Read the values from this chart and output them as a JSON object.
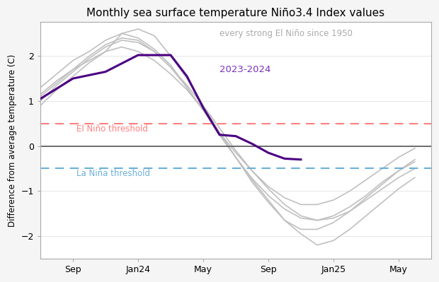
{
  "title": "Monthly sea surface temperature Niño3.4 Index values",
  "ylabel": "Difference from average temperature (C)",
  "el_nino_threshold": 0.5,
  "la_nina_threshold": -0.5,
  "el_nino_label": "El Niño threshold",
  "la_nina_label": "La Niña threshold",
  "enso_label": "2023-2024",
  "gray_label": "every strong El Niño since 1950",
  "ylim": [
    -2.5,
    2.75
  ],
  "background_color": "#f5f5f5",
  "plot_bg_color": "#ffffff",
  "main_color": "#4b0082",
  "gray_color": "#c0c0c0",
  "el_nino_color": "#ff8080",
  "la_nina_color": "#6ab0d8",
  "xtick_labels": [
    "Sep",
    "Jan24",
    "May",
    "Sep",
    "Jan25",
    "May"
  ],
  "xtick_positions": [
    2,
    6,
    10,
    14,
    18,
    22
  ],
  "xlim": [
    0,
    24
  ],
  "main_line_x": [
    0,
    2,
    4,
    6,
    8,
    9,
    10,
    11,
    12,
    13,
    14,
    15,
    16
  ],
  "main_line_y": [
    1.05,
    1.5,
    1.65,
    2.02,
    2.02,
    1.55,
    0.85,
    0.25,
    0.22,
    0.05,
    -0.15,
    -0.28,
    -0.3
  ],
  "gray_lines": [
    {
      "x": [
        0,
        1,
        2,
        3,
        4,
        5,
        6,
        7,
        8,
        9,
        10,
        11,
        12,
        13,
        14,
        15,
        16,
        17,
        18,
        19,
        20,
        21,
        22,
        23
      ],
      "y": [
        1.3,
        1.6,
        1.9,
        2.1,
        2.35,
        2.5,
        2.4,
        2.15,
        1.8,
        1.3,
        0.8,
        0.25,
        -0.25,
        -0.75,
        -1.2,
        -1.65,
        -1.95,
        -2.2,
        -2.1,
        -1.85,
        -1.55,
        -1.25,
        -0.95,
        -0.7
      ]
    },
    {
      "x": [
        0,
        1,
        2,
        3,
        4,
        5,
        6,
        7,
        8,
        9,
        10,
        11,
        12,
        13,
        14,
        15,
        16,
        17,
        18,
        19,
        20,
        21,
        22,
        23
      ],
      "y": [
        0.9,
        1.25,
        1.55,
        1.85,
        2.1,
        2.5,
        2.6,
        2.45,
        2.0,
        1.5,
        0.9,
        0.3,
        -0.25,
        -0.8,
        -1.25,
        -1.65,
        -1.85,
        -1.85,
        -1.7,
        -1.45,
        -1.15,
        -0.85,
        -0.55,
        -0.3
      ]
    },
    {
      "x": [
        0,
        1,
        2,
        3,
        4,
        5,
        6,
        7,
        8,
        9,
        10,
        11,
        12,
        13,
        14,
        15,
        16,
        17,
        18,
        19,
        20,
        21,
        22,
        23
      ],
      "y": [
        1.15,
        1.45,
        1.7,
        1.9,
        2.1,
        2.2,
        2.1,
        1.9,
        1.6,
        1.25,
        0.8,
        0.3,
        -0.15,
        -0.55,
        -0.9,
        -1.15,
        -1.3,
        -1.3,
        -1.2,
        -1.0,
        -0.75,
        -0.5,
        -0.25,
        -0.05
      ]
    },
    {
      "x": [
        0,
        1,
        2,
        3,
        4,
        5,
        6,
        7,
        8,
        9,
        10,
        11,
        12,
        13,
        14,
        15,
        16,
        17,
        18,
        19,
        20,
        21,
        22,
        23
      ],
      "y": [
        1.1,
        1.4,
        1.7,
        2.0,
        2.25,
        2.4,
        2.35,
        2.1,
        1.75,
        1.35,
        0.9,
        0.4,
        -0.1,
        -0.55,
        -0.95,
        -1.3,
        -1.55,
        -1.65,
        -1.6,
        -1.45,
        -1.2,
        -0.95,
        -0.7,
        -0.5
      ]
    },
    {
      "x": [
        0,
        1,
        2,
        3,
        4,
        5,
        6,
        7,
        8,
        9,
        10,
        11,
        12,
        13,
        14,
        15,
        16,
        17,
        18,
        19,
        20,
        21,
        22,
        23
      ],
      "y": [
        1.0,
        1.35,
        1.65,
        1.95,
        2.2,
        2.35,
        2.3,
        2.1,
        1.75,
        1.3,
        0.8,
        0.25,
        -0.25,
        -0.72,
        -1.1,
        -1.4,
        -1.6,
        -1.65,
        -1.55,
        -1.35,
        -1.1,
        -0.8,
        -0.55,
        -0.35
      ]
    }
  ]
}
